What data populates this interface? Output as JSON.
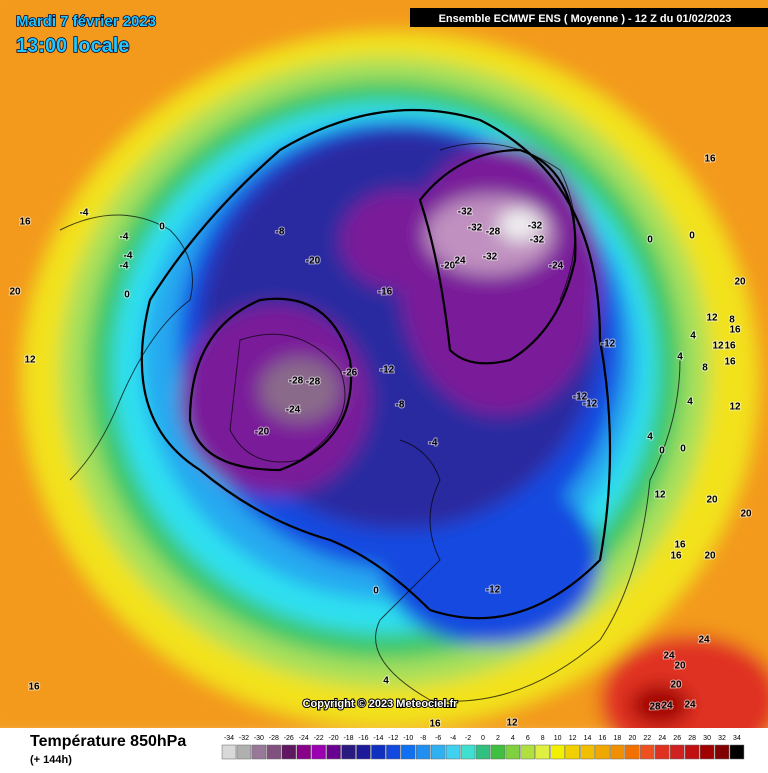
{
  "header": {
    "date": "Mardi 7 février 2023",
    "time": "13:00 locale",
    "model": "Ensemble ECMWF ENS  ( Moyenne )  -  12 Z du 01/02/2023"
  },
  "map": {
    "contour_labels": [
      16,
      -4,
      0,
      -4,
      -4,
      -4,
      0,
      20,
      12,
      -8,
      -20,
      -16,
      -20,
      24,
      -32,
      -32,
      -28,
      -32,
      -32,
      -32,
      -24,
      0,
      0,
      16,
      20,
      12,
      8,
      4,
      16,
      12,
      16,
      4,
      8,
      16,
      -12,
      -12,
      -12,
      -26,
      -12,
      -28,
      -28,
      -24,
      -20,
      -8,
      -4,
      4,
      12,
      4,
      0,
      0,
      12,
      20,
      20,
      16,
      16,
      20,
      -12,
      0,
      24,
      24,
      20,
      20,
      28,
      24,
      24,
      4,
      16,
      16,
      12
    ],
    "copyright": "Copyright © 2023 Meteociel.fr"
  },
  "legend": {
    "title": "Température 850hPa",
    "lead": "(+ 144h)",
    "ticks": [
      -34,
      -32,
      -30,
      -28,
      -26,
      -24,
      -22,
      -20,
      -18,
      -16,
      -14,
      -12,
      -10,
      -8,
      -6,
      -4,
      -2,
      0,
      2,
      4,
      6,
      8,
      10,
      12,
      14,
      16,
      18,
      20,
      22,
      24,
      26,
      28,
      30,
      32,
      34
    ],
    "colors": [
      "#d8d8d8",
      "#b0b0b0",
      "#987898",
      "#805080",
      "#601860",
      "#880088",
      "#9a00b0",
      "#6a0090",
      "#2a1a80",
      "#1a1a9a",
      "#1030c0",
      "#1048e0",
      "#1070f0",
      "#2090f0",
      "#30b0f0",
      "#40d0f0",
      "#40e0d0",
      "#30c080",
      "#40c040",
      "#80d040",
      "#b0e040",
      "#e0f040",
      "#f0f000",
      "#f0d000",
      "#f0c000",
      "#f0a800",
      "#f09000",
      "#f07000",
      "#f05020",
      "#e03020",
      "#d02020",
      "#c01010",
      "#a00000",
      "#800000",
      "#000000"
    ]
  }
}
